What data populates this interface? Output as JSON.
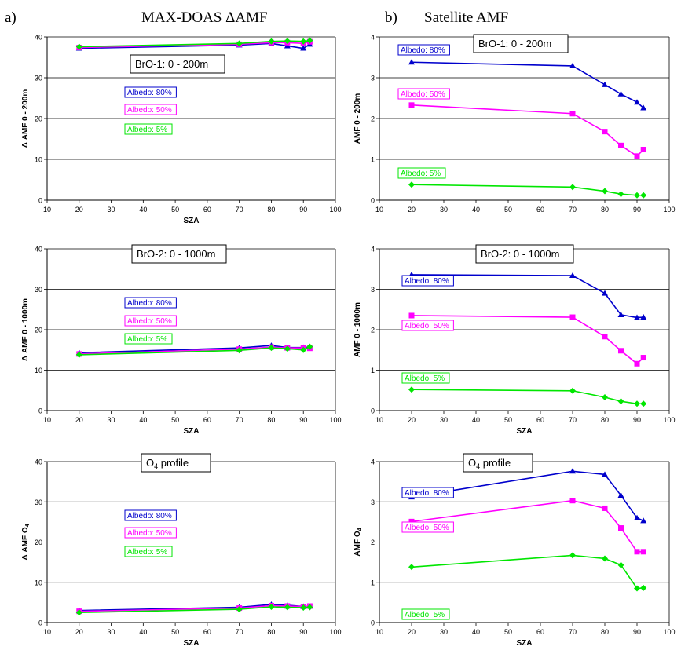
{
  "headers": {
    "left_letter": "a)",
    "left_title": "MAX-DOAS  ΔAMF",
    "right_letter": "b)",
    "right_title": "Satellite  AMF"
  },
  "colors": {
    "albedo_80": "#0000cc",
    "albedo_50": "#ff00ff",
    "albedo_5": "#00e600",
    "grid": "#000000",
    "background": "#ffffff"
  },
  "chart_data": [
    {
      "id": "maxdoas-bro1",
      "type": "line",
      "title": "BrO-1: 0 - 200m",
      "xlabel": "SZA",
      "ylabel": "Δ AMF 0 - 200m",
      "xlim": [
        10,
        100
      ],
      "ylim": [
        0,
        40
      ],
      "xticks": [
        10,
        20,
        30,
        40,
        50,
        60,
        70,
        80,
        90,
        100
      ],
      "yticks": [
        0,
        10,
        20,
        30,
        40
      ],
      "grid": "horizontal",
      "x": [
        20,
        70,
        80,
        85,
        90,
        92
      ],
      "series": [
        {
          "name": "Albedo: 80%",
          "color": "#0000cc",
          "marker": "triangle",
          "values": [
            37.2,
            38.0,
            38.4,
            37.8,
            37.2,
            38.2
          ]
        },
        {
          "name": "Albedo: 50%",
          "color": "#ff00ff",
          "marker": "square",
          "values": [
            37.4,
            38.2,
            38.6,
            38.6,
            38.4,
            38.8
          ]
        },
        {
          "name": "Albedo: 5%",
          "color": "#00e600",
          "marker": "diamond",
          "values": [
            37.6,
            38.4,
            38.9,
            39.0,
            38.9,
            39.1
          ]
        }
      ]
    },
    {
      "id": "satellite-bro1",
      "type": "line",
      "title": "BrO-1: 0 - 200m",
      "xlabel": "",
      "ylabel": "AMF 0 - 200m",
      "xlim": [
        10,
        100
      ],
      "ylim": [
        0,
        4
      ],
      "xticks": [
        10,
        20,
        30,
        40,
        50,
        60,
        70,
        80,
        90,
        100
      ],
      "yticks": [
        0,
        1,
        2,
        3,
        4
      ],
      "grid": "horizontal",
      "x": [
        20,
        70,
        80,
        85,
        90,
        92
      ],
      "series": [
        {
          "name": "Albedo: 80%",
          "color": "#0000cc",
          "marker": "triangle",
          "values": [
            3.38,
            3.29,
            2.83,
            2.6,
            2.4,
            2.26
          ]
        },
        {
          "name": "Albedo: 50%",
          "color": "#ff00ff",
          "marker": "square",
          "values": [
            2.33,
            2.12,
            1.68,
            1.34,
            1.08,
            1.24
          ]
        },
        {
          "name": "Albedo: 5%",
          "color": "#00e600",
          "marker": "diamond",
          "values": [
            0.38,
            0.32,
            0.22,
            0.15,
            0.12,
            0.12
          ]
        }
      ]
    },
    {
      "id": "maxdoas-bro2",
      "type": "line",
      "title": "BrO-2: 0 - 1000m",
      "xlabel": "SZA",
      "ylabel": "Δ AMF 0 - 1000m",
      "xlim": [
        10,
        100
      ],
      "ylim": [
        0,
        40
      ],
      "xticks": [
        10,
        20,
        30,
        40,
        50,
        60,
        70,
        80,
        90,
        100
      ],
      "yticks": [
        0,
        10,
        20,
        30,
        40
      ],
      "grid": "horizontal",
      "x": [
        20,
        70,
        80,
        85,
        90,
        92
      ],
      "series": [
        {
          "name": "Albedo: 80%",
          "color": "#0000cc",
          "marker": "triangle",
          "values": [
            14.3,
            15.5,
            16.1,
            15.6,
            15.6,
            15.7
          ]
        },
        {
          "name": "Albedo: 50%",
          "color": "#ff00ff",
          "marker": "square",
          "values": [
            14.0,
            15.2,
            15.7,
            15.5,
            15.5,
            15.4
          ]
        },
        {
          "name": "Albedo: 5%",
          "color": "#00e600",
          "marker": "diamond",
          "values": [
            13.8,
            14.9,
            15.5,
            15.3,
            15.0,
            15.8
          ]
        }
      ]
    },
    {
      "id": "satellite-bro2",
      "type": "line",
      "title": "BrO-2: 0 - 1000m",
      "xlabel": "SZA",
      "ylabel": "AMF 0 - 1000m",
      "xlim": [
        10,
        100
      ],
      "ylim": [
        0,
        4
      ],
      "xticks": [
        10,
        20,
        30,
        40,
        50,
        60,
        70,
        80,
        90,
        100
      ],
      "yticks": [
        0,
        1,
        2,
        3,
        4
      ],
      "grid": "horizontal",
      "x": [
        20,
        70,
        80,
        85,
        90,
        92
      ],
      "series": [
        {
          "name": "Albedo: 80%",
          "color": "#0000cc",
          "marker": "triangle",
          "values": [
            3.36,
            3.34,
            2.9,
            2.37,
            2.3,
            2.31
          ]
        },
        {
          "name": "Albedo: 50%",
          "color": "#ff00ff",
          "marker": "square",
          "values": [
            2.35,
            2.31,
            1.83,
            1.48,
            1.16,
            1.31
          ]
        },
        {
          "name": "Albedo: 5%",
          "color": "#00e600",
          "marker": "diamond",
          "values": [
            0.52,
            0.49,
            0.33,
            0.23,
            0.17,
            0.17
          ]
        }
      ]
    },
    {
      "id": "maxdoas-o4",
      "type": "line",
      "title": "O4 profile",
      "xlabel": "SZA",
      "ylabel": "Δ AMF O4",
      "xlim": [
        10,
        100
      ],
      "ylim": [
        0,
        40
      ],
      "xticks": [
        10,
        20,
        30,
        40,
        50,
        60,
        70,
        80,
        90,
        100
      ],
      "yticks": [
        0,
        10,
        20,
        30,
        40
      ],
      "grid": "horizontal",
      "x": [
        20,
        70,
        80,
        85,
        90,
        92
      ],
      "series": [
        {
          "name": "Albedo: 80%",
          "color": "#0000cc",
          "marker": "triangle",
          "values": [
            3.0,
            3.8,
            4.5,
            4.3,
            4.0,
            4.0
          ]
        },
        {
          "name": "Albedo: 50%",
          "color": "#ff00ff",
          "marker": "square",
          "values": [
            2.8,
            3.6,
            4.2,
            4.1,
            4.0,
            4.1
          ]
        },
        {
          "name": "Albedo: 5%",
          "color": "#00e600",
          "marker": "diamond",
          "values": [
            2.5,
            3.3,
            3.9,
            3.8,
            3.7,
            3.8
          ]
        }
      ]
    },
    {
      "id": "satellite-o4",
      "type": "line",
      "title": "O4 profile",
      "xlabel": "SZA",
      "ylabel": "AMF O4",
      "xlim": [
        10,
        100
      ],
      "ylim": [
        0,
        4
      ],
      "xticks": [
        10,
        20,
        30,
        40,
        50,
        60,
        70,
        80,
        90,
        100
      ],
      "yticks": [
        0,
        1,
        2,
        3,
        4
      ],
      "grid": "horizontal",
      "x": [
        20,
        70,
        80,
        85,
        90,
        92
      ],
      "series": [
        {
          "name": "Albedo: 80%",
          "color": "#0000cc",
          "marker": "triangle",
          "values": [
            3.12,
            3.76,
            3.68,
            3.16,
            2.6,
            2.53
          ]
        },
        {
          "name": "Albedo: 50%",
          "color": "#ff00ff",
          "marker": "square",
          "values": [
            2.51,
            3.03,
            2.84,
            2.35,
            1.76,
            1.76
          ]
        },
        {
          "name": "Albedo: 5%",
          "color": "#00e600",
          "marker": "diamond",
          "values": [
            1.38,
            1.67,
            1.59,
            1.43,
            0.85,
            0.86
          ]
        }
      ]
    }
  ]
}
